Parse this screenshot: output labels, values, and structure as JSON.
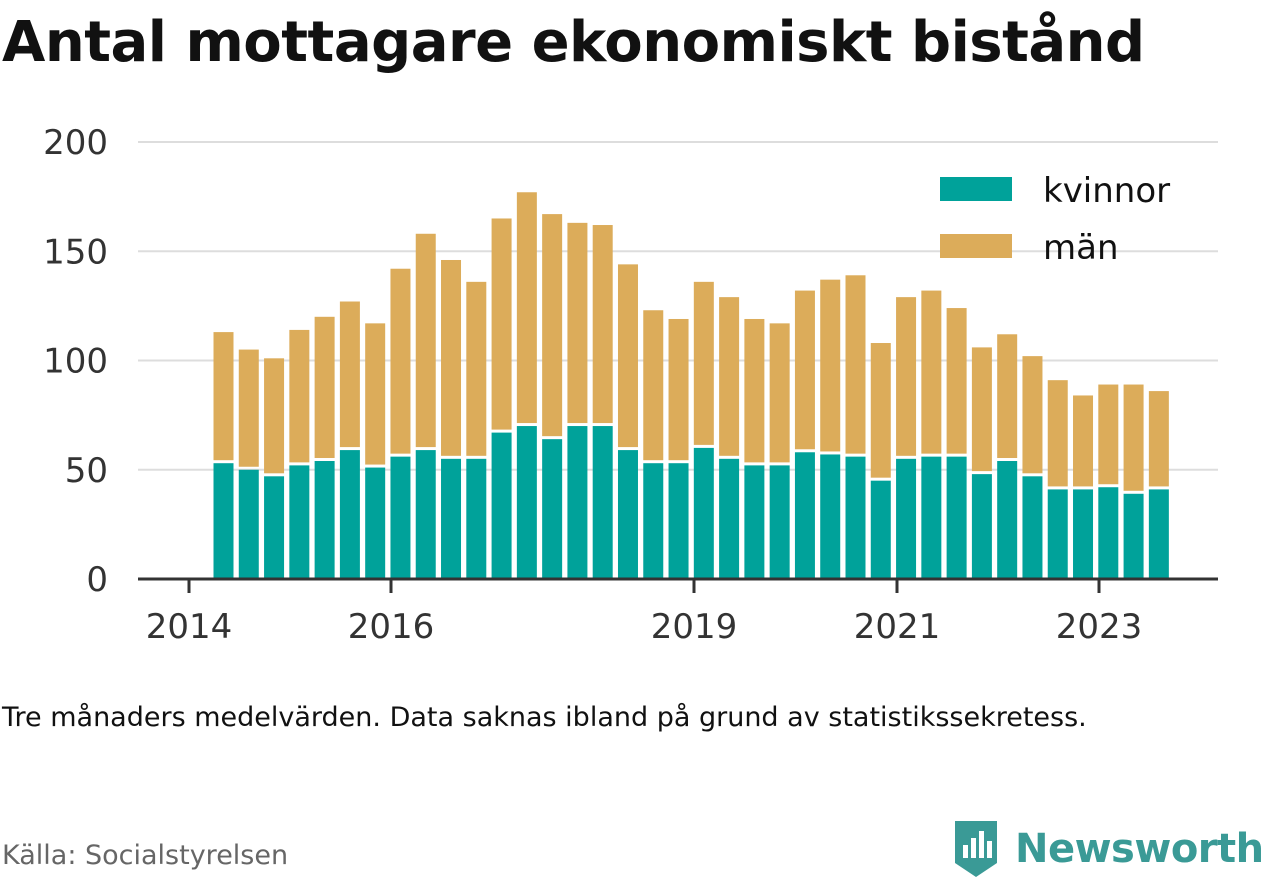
{
  "title": "Antal mottagare ekonomiskt bistånd",
  "subtitle": "Tre månaders medelvärden. Data saknas ibland på grund av statistikssekretess.",
  "source": "Källa: Socialstyrelsen",
  "brand": "Newsworthy",
  "colors": {
    "kvinnor": "#00a29a",
    "man": "#dcac5a",
    "grid": "#dddddd",
    "axis": "#333333",
    "brand": "#3a9a96"
  },
  "chart_data": {
    "type": "bar",
    "stacked": true,
    "x_tick_labels": [
      "2014",
      "2016",
      "2019",
      "2021",
      "2023"
    ],
    "y_ticks": [
      0,
      50,
      100,
      150,
      200
    ],
    "ylim": [
      0,
      200
    ],
    "grid": true,
    "legend_position": "top-right",
    "series": [
      {
        "name": "kvinnor",
        "values": [
          53,
          50,
          47,
          52,
          54,
          59,
          51,
          56,
          59,
          55,
          55,
          67,
          70,
          64,
          70,
          70,
          59,
          53,
          53,
          60,
          55,
          52,
          52,
          58,
          57,
          56,
          45,
          55,
          56,
          56,
          48,
          54,
          47,
          41,
          41,
          42,
          39,
          41
        ]
      },
      {
        "name": "män",
        "values": [
          60,
          55,
          54,
          62,
          66,
          68,
          66,
          86,
          99,
          91,
          81,
          98,
          107,
          103,
          93,
          92,
          85,
          70,
          66,
          76,
          74,
          67,
          65,
          74,
          80,
          83,
          63,
          74,
          76,
          68,
          58,
          58,
          55,
          50,
          43,
          47,
          50,
          45
        ]
      }
    ]
  }
}
